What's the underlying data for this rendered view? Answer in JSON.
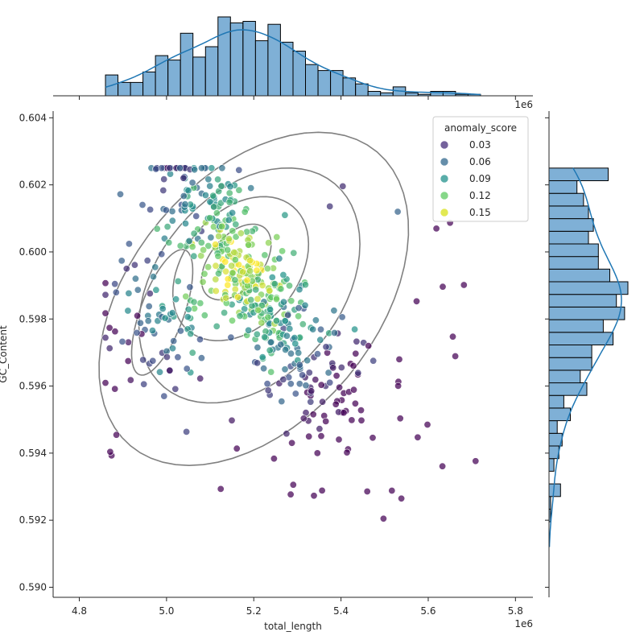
{
  "chart_data": {
    "type": "scatter",
    "xlabel": "total_length",
    "ylabel": "GC_Content",
    "x_offset_label": "1e6",
    "top_offset_label": "1e6",
    "xlim": [
      4.74,
      5.84
    ],
    "ylim": [
      0.5897,
      0.6042
    ],
    "xticks": [
      "4.8",
      "5.0",
      "5.2",
      "5.4",
      "5.6",
      "5.8"
    ],
    "xtick_values": [
      4.8,
      5.0,
      5.2,
      5.4,
      5.6,
      5.8
    ],
    "yticks": [
      "0.590",
      "0.592",
      "0.594",
      "0.596",
      "0.598",
      "0.600",
      "0.602",
      "0.604"
    ],
    "ytick_values": [
      0.59,
      0.592,
      0.594,
      0.596,
      0.598,
      0.6,
      0.602,
      0.604
    ],
    "legend": {
      "title": "anomaly_score",
      "placement": "top-right",
      "entries": [
        {
          "label": "0.03",
          "color": "#472d7b"
        },
        {
          "label": "0.06",
          "color": "#31688e"
        },
        {
          "label": "0.09",
          "color": "#21918c"
        },
        {
          "label": "0.12",
          "color": "#5ec962"
        },
        {
          "label": "0.15",
          "color": "#d8e219"
        }
      ]
    },
    "colormap": "viridis",
    "point_count": 600,
    "x_distribution": {
      "center": 5.19,
      "spread": 0.12,
      "min": 4.86,
      "max": 5.72
    },
    "y_distribution": {
      "center": 0.5991,
      "spread": 0.0018,
      "min": 0.5912,
      "max": 0.6025
    },
    "kde_contour_color": "#808080",
    "marginal_color": "#7fb0d6",
    "kde_line_color": "#1f77b4"
  }
}
